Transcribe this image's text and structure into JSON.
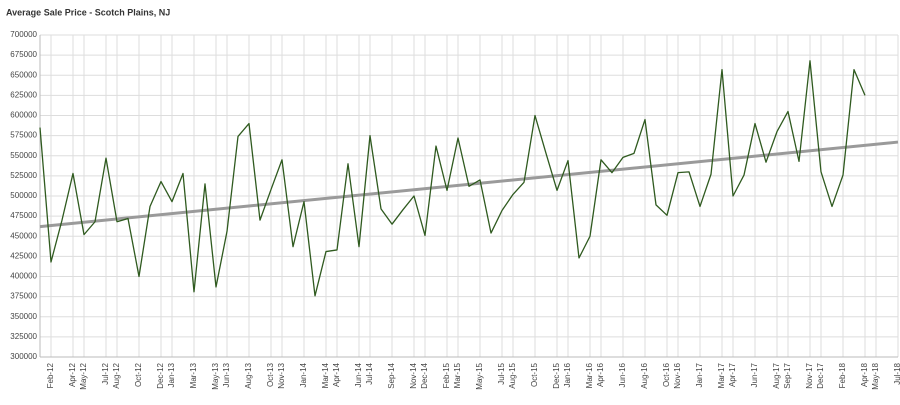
{
  "chart_data": {
    "type": "line",
    "title": "Average Sale Price - Scotch Plains, NJ",
    "x": [
      "2012-01",
      "2012-02",
      "2012-03",
      "2012-04",
      "2012-05",
      "2012-06",
      "2012-07",
      "2012-08",
      "2012-09",
      "2012-10",
      "2012-11",
      "2012-12",
      "2013-01",
      "2013-02",
      "2013-03",
      "2013-04",
      "2013-05",
      "2013-06",
      "2013-07",
      "2013-08",
      "2013-09",
      "2013-10",
      "2013-11",
      "2013-12",
      "2014-01",
      "2014-02",
      "2014-03",
      "2014-04",
      "2014-05",
      "2014-06",
      "2014-07",
      "2014-08",
      "2014-09",
      "2014-10",
      "2014-11",
      "2014-12",
      "2015-01",
      "2015-02",
      "2015-03",
      "2015-04",
      "2015-05",
      "2015-06",
      "2015-07",
      "2015-08",
      "2015-09",
      "2015-10",
      "2015-11",
      "2015-12",
      "2016-01",
      "2016-02",
      "2016-03",
      "2016-04",
      "2016-05",
      "2016-06",
      "2016-07",
      "2016-08",
      "2016-09",
      "2016-10",
      "2016-11",
      "2016-12",
      "2017-01",
      "2017-02",
      "2017-03",
      "2017-04",
      "2017-05",
      "2017-06",
      "2017-07",
      "2017-08",
      "2017-09",
      "2017-10",
      "2017-11",
      "2017-12",
      "2018-01",
      "2018-02",
      "2018-03",
      "2018-04"
    ],
    "series": [
      {
        "color": "#2f5a1f",
        "values": [
          585000,
          418000,
          470000,
          528000,
          452000,
          468000,
          547000,
          468000,
          472000,
          400000,
          487000,
          518000,
          493000,
          528000,
          381000,
          515000,
          387000,
          456000,
          574000,
          590000,
          470000,
          508000,
          545000,
          437000,
          493000,
          376000,
          431000,
          433000,
          540000,
          437000,
          575000,
          484000,
          465000,
          483000,
          500000,
          451000,
          562000,
          507000,
          572000,
          512000,
          520000,
          454000,
          482000,
          502000,
          517000,
          600000,
          553000,
          507000,
          544000,
          423000,
          450000,
          545000,
          529000,
          548000,
          553000,
          595000,
          489000,
          476000,
          529000,
          530000,
          487000,
          527000,
          657000,
          500000,
          526000,
          590000,
          542000,
          580000,
          605000,
          543000,
          668000,
          530000,
          487000,
          526000,
          657000,
          625000
        ]
      }
    ],
    "trend_line": {
      "color": "#9a9a9a",
      "values": [
        462000,
        567000
      ]
    },
    "xlim": [
      "2012-01",
      "2018-07"
    ],
    "xticks": [
      {
        "value": "2012-02",
        "label": "Feb-12"
      },
      {
        "value": "2012-04",
        "label": "Apr-12"
      },
      {
        "value": "2012-05",
        "label": "May-12"
      },
      {
        "value": "2012-07",
        "label": "Jul-12"
      },
      {
        "value": "2012-08",
        "label": "Aug-12"
      },
      {
        "value": "2012-10",
        "label": "Oct-12"
      },
      {
        "value": "2012-12",
        "label": "Dec-12"
      },
      {
        "value": "2013-01",
        "label": "Jan-13"
      },
      {
        "value": "2013-03",
        "label": "Mar-13"
      },
      {
        "value": "2013-05",
        "label": "May-13"
      },
      {
        "value": "2013-06",
        "label": "Jun-13"
      },
      {
        "value": "2013-08",
        "label": "Aug-13"
      },
      {
        "value": "2013-10",
        "label": "Oct-13"
      },
      {
        "value": "2013-11",
        "label": "Nov-13"
      },
      {
        "value": "2014-01",
        "label": "Jan-14"
      },
      {
        "value": "2014-03",
        "label": "Mar-14"
      },
      {
        "value": "2014-04",
        "label": "Apr-14"
      },
      {
        "value": "2014-06",
        "label": "Jun-14"
      },
      {
        "value": "2014-07",
        "label": "Jul-14"
      },
      {
        "value": "2014-09",
        "label": "Sep-14"
      },
      {
        "value": "2014-11",
        "label": "Nov-14"
      },
      {
        "value": "2014-12",
        "label": "Dec-14"
      },
      {
        "value": "2015-02",
        "label": "Feb-15"
      },
      {
        "value": "2015-03",
        "label": "Mar-15"
      },
      {
        "value": "2015-05",
        "label": "May-15"
      },
      {
        "value": "2015-07",
        "label": "Jul-15"
      },
      {
        "value": "2015-08",
        "label": "Aug-15"
      },
      {
        "value": "2015-10",
        "label": "Oct-15"
      },
      {
        "value": "2015-12",
        "label": "Dec-15"
      },
      {
        "value": "2016-01",
        "label": "Jan-16"
      },
      {
        "value": "2016-03",
        "label": "Mar-16"
      },
      {
        "value": "2016-04",
        "label": "Apr-16"
      },
      {
        "value": "2016-06",
        "label": "Jun-16"
      },
      {
        "value": "2016-08",
        "label": "Aug-16"
      },
      {
        "value": "2016-10",
        "label": "Oct-16"
      },
      {
        "value": "2016-11",
        "label": "Nov-16"
      },
      {
        "value": "2017-01",
        "label": "Jan-17"
      },
      {
        "value": "2017-03",
        "label": "Mar-17"
      },
      {
        "value": "2017-04",
        "label": "Apr-17"
      },
      {
        "value": "2017-06",
        "label": "Jun-17"
      },
      {
        "value": "2017-08",
        "label": "Aug-17"
      },
      {
        "value": "2017-09",
        "label": "Sep-17"
      },
      {
        "value": "2017-11",
        "label": "Nov-17"
      },
      {
        "value": "2017-12",
        "label": "Dec-17"
      },
      {
        "value": "2018-02",
        "label": "Feb-18"
      },
      {
        "value": "2018-04",
        "label": "Apr-18"
      },
      {
        "value": "2018-05",
        "label": "May-18"
      },
      {
        "value": "2018-07",
        "label": "Jul-18"
      }
    ],
    "ylim": [
      300000,
      700000
    ],
    "yticks": [
      300000,
      325000,
      350000,
      375000,
      400000,
      425000,
      450000,
      475000,
      500000,
      525000,
      550000,
      575000,
      600000,
      625000,
      650000,
      675000,
      700000
    ],
    "grid": true
  }
}
